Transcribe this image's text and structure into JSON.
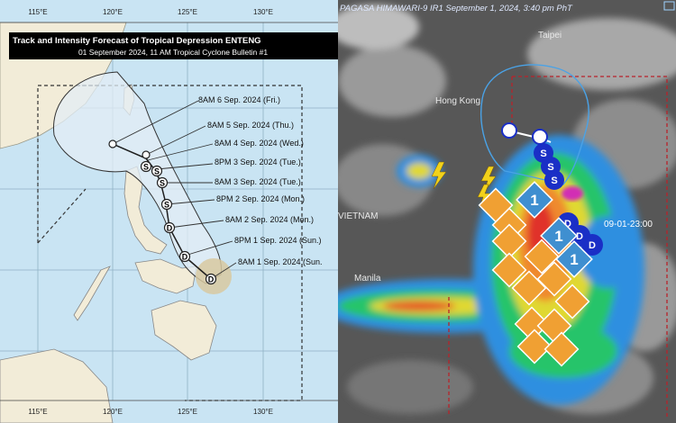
{
  "left_panel": {
    "title": "Track and Intensity Forecast of Tropical Depression ENTENG",
    "subtitle": "01 September 2024, 11 AM Tropical Cyclone Bulletin #1",
    "longitude_labels": [
      "115°E",
      "120°E",
      "125°E",
      "130°E"
    ],
    "forecast_labels": [
      "8AM 6 Sep. 2024 (Fri.)",
      "8AM 5 Sep. 2024 (Thu.)",
      "8AM 4 Sep. 2024 (Wed.)",
      "8PM 3 Sep. 2024 (Tue.)",
      "8AM 3 Sep. 2024 (Tue.)",
      "8PM 2 Sep. 2024 (Mon.)",
      "8AM 2 Sep. 2024 (Mon.)",
      "8PM 1 Sep. 2024 (Sun.)",
      "8AM 1 Sep. 2024 (Sun."
    ],
    "marker_letters": [
      "S",
      "S",
      "S",
      "S",
      "D",
      "D",
      "D"
    ],
    "colors": {
      "sea": "#c9e4f3",
      "land": "#f2ecd8",
      "cone": "#e3eef6",
      "track": "#1e1e1e",
      "circle": "#d8c9a0"
    }
  },
  "right_panel": {
    "header": "PAGASA HIMAWARI-9 IR1 September 1, 2024, 3:40 pm PhT",
    "place_labels": [
      "Taipei",
      "Hong Kong",
      "VIETNAM",
      "Manila"
    ],
    "timestamp_label": "09-01-23:00",
    "storm_letters": [
      "S",
      "S",
      "S",
      "D",
      "D",
      "D"
    ],
    "warning_number": "1",
    "colors": {
      "cloud_base": "#565656",
      "warning_orange": "#f0a033",
      "warning_blue": "#3f8fd0",
      "storm_blue": "#1a2fc6",
      "par_line": "#b8232b"
    }
  }
}
